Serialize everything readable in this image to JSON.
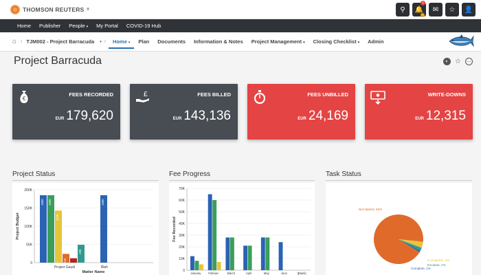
{
  "brand": {
    "name": "THOMSON REUTERS",
    "mark": "®"
  },
  "top_icons": [
    {
      "name": "search-icon",
      "glyph": "⚲"
    },
    {
      "name": "bell-icon",
      "glyph": "🔔",
      "badge": "1"
    },
    {
      "name": "mail-icon",
      "glyph": "✉"
    },
    {
      "name": "star-icon",
      "glyph": "☆"
    },
    {
      "name": "user-icon",
      "glyph": "👤"
    }
  ],
  "nav": [
    {
      "label": "Home"
    },
    {
      "label": "Publisher"
    },
    {
      "label": "People",
      "dropdown": true
    },
    {
      "label": "My Portal"
    },
    {
      "label": "COVID-19 Hub"
    }
  ],
  "subnav": {
    "matter": "TJM002 - Project Barracuda",
    "items": [
      {
        "label": "Home",
        "dropdown": true,
        "active": true
      },
      {
        "label": "Plan"
      },
      {
        "label": "Documents"
      },
      {
        "label": "Information & Notes"
      },
      {
        "label": "Project Management",
        "dropdown": true
      },
      {
        "label": "Closing Checklist",
        "dropdown": true
      },
      {
        "label": "Admin"
      }
    ]
  },
  "page_title": "Project Barracuda",
  "cards": [
    {
      "label": "FEES RECORDED",
      "currency": "EUR",
      "amount": "179,620",
      "color": "#484c53",
      "icon": "money-bag-icon"
    },
    {
      "label": "FEES BILLED",
      "currency": "EUR",
      "amount": "143,136",
      "color": "#484c53",
      "icon": "hand-pound-icon"
    },
    {
      "label": "FEES UNBILLED",
      "currency": "EUR",
      "amount": "24,169",
      "color": "#e44444",
      "icon": "stopwatch-icon"
    },
    {
      "label": "WRITE-DOWNS",
      "currency": "EUR",
      "amount": "12,315",
      "color": "#e44444",
      "icon": "money-down-icon"
    }
  ],
  "panels": {
    "project_status": "Project Status",
    "fee_progress": "Fee Progress",
    "task_status": "Task Status"
  },
  "chart_data": [
    {
      "type": "bar",
      "ylabel": "Project Budget",
      "xlabel": "Matter Name",
      "categories": [
        "Project Gaudi",
        "Blah"
      ],
      "yticks": [
        "0",
        "50K",
        "100K",
        "150K",
        "200K"
      ],
      "ylim": [
        0,
        200000
      ],
      "series": [
        {
          "color": "#2a63b3",
          "values": [
            185000,
            185000
          ],
          "labels": [
            "185K",
            "185K"
          ]
        },
        {
          "color": "#3a9e5a",
          "values": [
            185000,
            0
          ],
          "labels": [
            "185K",
            ""
          ]
        },
        {
          "color": "#e7c43a",
          "values": [
            143000,
            0
          ],
          "labels": [
            "143K",
            ""
          ]
        },
        {
          "color": "#e06a2a",
          "values": [
            24000,
            0
          ],
          "labels": [
            "24K",
            ""
          ]
        },
        {
          "color": "#b22222",
          "values": [
            12000,
            0
          ],
          "labels": [
            "",
            ""
          ]
        },
        {
          "color": "#2f9a8f",
          "values": [
            49000,
            0
          ],
          "labels": [
            "49K",
            ""
          ]
        }
      ]
    },
    {
      "type": "bar",
      "ylabel": "Fee Recorded",
      "categories": [
        "January",
        "Februar",
        "March",
        "April",
        "May",
        "June",
        "[Blank]"
      ],
      "yticks": [
        "0",
        "10K",
        "20K",
        "30K",
        "40K",
        "50K",
        "60K",
        "70K"
      ],
      "ylim": [
        0,
        70000
      ],
      "series": [
        {
          "color": "#2a63b3",
          "values": [
            12000,
            65000,
            28000,
            21000,
            28000,
            24000,
            0
          ]
        },
        {
          "color": "#3a9e5a",
          "values": [
            8000,
            60000,
            28000,
            21000,
            28000,
            0,
            0
          ]
        },
        {
          "color": "#e7c43a",
          "values": [
            5000,
            7000,
            0,
            0,
            0,
            0,
            0
          ]
        }
      ]
    },
    {
      "type": "pie",
      "slices": [
        {
          "label": "Not started, 92%",
          "value": 92,
          "color": "#e06a2a"
        },
        {
          "label": "In progress, 4%",
          "value": 4,
          "color": "#e7c43a"
        },
        {
          "label": "Escalate, 2%",
          "value": 2,
          "color": "#2f9a8f"
        },
        {
          "label": "Complete, 1%",
          "value": 1,
          "color": "#2a63b3"
        }
      ]
    }
  ]
}
